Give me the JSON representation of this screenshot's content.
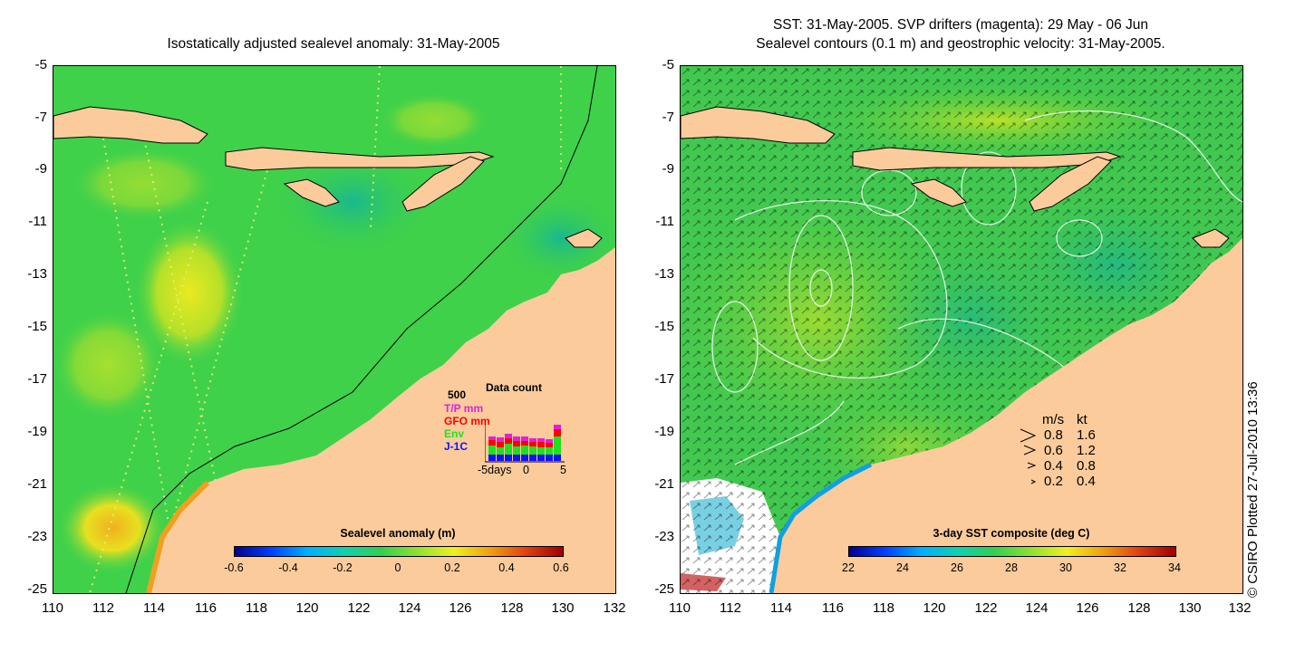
{
  "left_panel": {
    "title": "Isostatically adjusted sealevel anomaly: 31-May-2005",
    "y_ticks": [
      "-5",
      "-7",
      "-9",
      "-11",
      "-13",
      "-15",
      "-17",
      "-19",
      "-21",
      "-23",
      "-25"
    ],
    "x_ticks": [
      "110",
      "112",
      "114",
      "116",
      "118",
      "120",
      "122",
      "124",
      "126",
      "128",
      "130",
      "132"
    ],
    "colorbar": {
      "title": "Sealevel anomaly (m)",
      "ticks": [
        "-0.6",
        "-0.4",
        "-0.2",
        "0",
        "0.2",
        "0.4",
        "0.6"
      ]
    },
    "inset": {
      "title": "Data count",
      "max_label": "500",
      "series": [
        {
          "name": "T/P mm",
          "color": "#e020e0"
        },
        {
          "name": "GFO mm",
          "color": "#ff0000"
        },
        {
          "name": "Env",
          "color": "#20e020"
        },
        {
          "name": "J-1C",
          "color": "#1010ff"
        }
      ],
      "x_left": "-5days",
      "x_mid": "0",
      "x_right": "5"
    }
  },
  "right_panel": {
    "title_line1": "SST: 31-May-2005. SVP drifters (magenta): 29 May - 06 Jun",
    "title_line2": "Sealevel contours (0.1 m) and geostrophic velocity: 31-May-2005.",
    "y_ticks": [
      "-5",
      "-7",
      "-9",
      "-11",
      "-13",
      "-15",
      "-17",
      "-19",
      "-21",
      "-23",
      "-25"
    ],
    "x_ticks": [
      "110",
      "112",
      "114",
      "116",
      "118",
      "120",
      "122",
      "124",
      "126",
      "128",
      "130",
      "132"
    ],
    "colorbar": {
      "title": "3-day SST composite (deg C)",
      "ticks": [
        "22",
        "24",
        "26",
        "28",
        "30",
        "32",
        "34"
      ]
    },
    "velocity_legend": {
      "header_ms": "m/s",
      "header_kt": "kt",
      "rows": [
        {
          "ms": "0.8",
          "kt": "1.6"
        },
        {
          "ms": "0.6",
          "kt": "1.2"
        },
        {
          "ms": "0.4",
          "kt": "0.8"
        },
        {
          "ms": "0.2",
          "kt": "0.4"
        }
      ]
    }
  },
  "credit": "© CSIRO Plotted 27-Jul-2010 13:36",
  "colors": {
    "land": "#fbcb9b",
    "ocean_left": "#3fd14a",
    "ocean_right": "#5ad23a",
    "warm_highlight": "#e8e81a",
    "cool_highlight": "#1fb79a"
  }
}
